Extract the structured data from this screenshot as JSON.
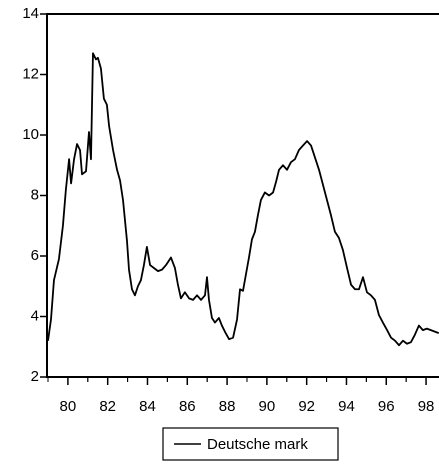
{
  "chart_data": {
    "type": "line",
    "x": [
      79.0,
      79.15,
      79.3,
      79.55,
      79.75,
      79.9,
      80.06,
      80.16,
      80.31,
      80.46,
      80.61,
      80.71,
      80.91,
      81.06,
      81.16,
      81.26,
      81.41,
      81.51,
      81.66,
      81.81,
      81.96,
      82.07,
      82.27,
      82.47,
      82.62,
      82.77,
      82.97,
      83.07,
      83.22,
      83.37,
      83.52,
      83.67,
      83.82,
      83.97,
      84.13,
      84.33,
      84.53,
      84.73,
      84.93,
      85.18,
      85.38,
      85.53,
      85.68,
      85.88,
      86.09,
      86.29,
      86.49,
      86.69,
      86.89,
      86.99,
      87.09,
      87.24,
      87.39,
      87.59,
      87.74,
      87.89,
      88.1,
      88.3,
      88.5,
      88.65,
      88.8,
      88.95,
      89.1,
      89.25,
      89.4,
      89.55,
      89.7,
      89.9,
      90.11,
      90.31,
      90.46,
      90.61,
      90.81,
      91.01,
      91.21,
      91.41,
      91.61,
      91.81,
      92.02,
      92.22,
      92.42,
      92.62,
      92.82,
      93.02,
      93.22,
      93.42,
      93.62,
      93.82,
      94.03,
      94.23,
      94.43,
      94.63,
      94.83,
      95.03,
      95.23,
      95.43,
      95.63,
      95.83,
      96.04,
      96.24,
      96.44,
      96.64,
      96.84,
      97.04,
      97.24,
      97.44,
      97.64,
      97.84,
      98.04,
      98.24,
      98.44,
      98.64
    ],
    "series": [
      {
        "name": "Deutsche mark",
        "color": "#000000",
        "values": [
          3.2,
          3.9,
          5.2,
          5.9,
          7.0,
          8.2,
          9.2,
          8.4,
          9.2,
          9.7,
          9.5,
          8.7,
          8.8,
          10.1,
          9.2,
          12.7,
          12.5,
          12.55,
          12.2,
          11.2,
          11.0,
          10.3,
          9.5,
          8.85,
          8.5,
          7.85,
          6.5,
          5.55,
          4.9,
          4.7,
          5.0,
          5.2,
          5.7,
          6.3,
          5.7,
          5.6,
          5.5,
          5.55,
          5.7,
          5.95,
          5.6,
          5.05,
          4.6,
          4.8,
          4.6,
          4.55,
          4.7,
          4.55,
          4.7,
          5.3,
          4.55,
          3.95,
          3.8,
          3.95,
          3.7,
          3.5,
          3.25,
          3.3,
          3.9,
          4.9,
          4.85,
          5.4,
          5.95,
          6.55,
          6.8,
          7.35,
          7.85,
          8.1,
          8.0,
          8.1,
          8.45,
          8.85,
          9.0,
          8.85,
          9.1,
          9.2,
          9.5,
          9.65,
          9.8,
          9.65,
          9.25,
          8.85,
          8.35,
          7.85,
          7.35,
          6.8,
          6.6,
          6.2,
          5.6,
          5.05,
          4.9,
          4.9,
          5.3,
          4.8,
          4.7,
          4.55,
          4.05,
          3.8,
          3.55,
          3.3,
          3.2,
          3.05,
          3.2,
          3.1,
          3.15,
          3.4,
          3.7,
          3.55,
          3.6,
          3.55,
          3.5,
          3.45
        ]
      }
    ],
    "xlim": [
      78.95,
      98.65
    ],
    "xticks": [
      80,
      82,
      84,
      86,
      88,
      90,
      92,
      94,
      96,
      98
    ],
    "ylim": [
      2,
      14
    ],
    "yticks": [
      2,
      4,
      6,
      8,
      10,
      12,
      14
    ],
    "grid": false,
    "legend": "bottom"
  }
}
